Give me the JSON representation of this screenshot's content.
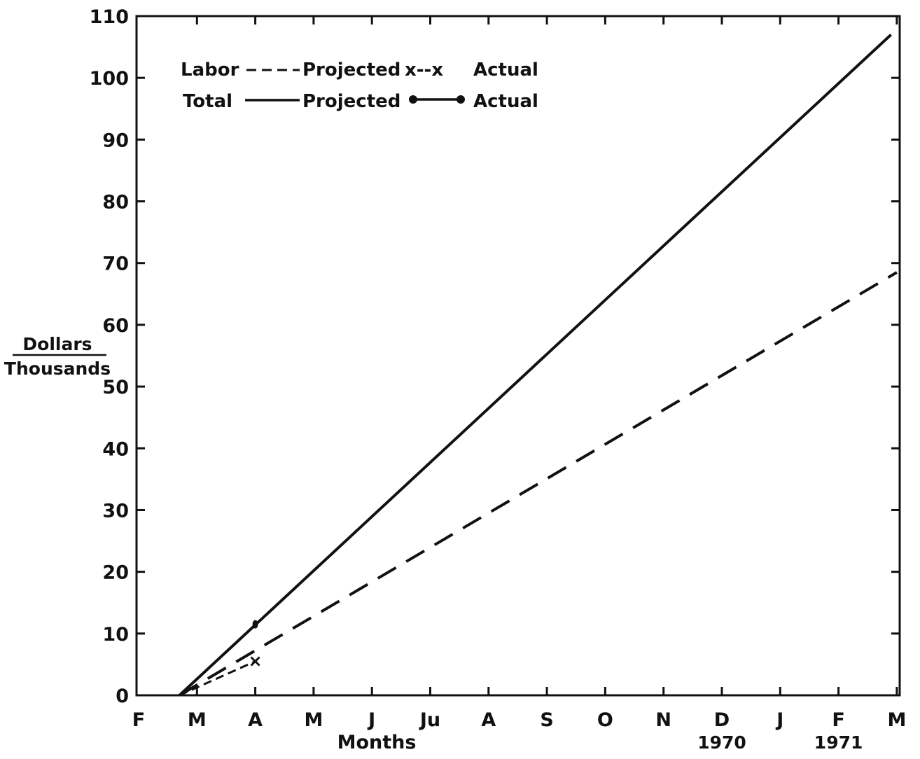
{
  "chart_data": {
    "type": "line",
    "xlabel": "Months",
    "ylabel_top": "Dollars",
    "ylabel_bottom": "Thousands",
    "ylim": [
      0,
      110
    ],
    "ytick_labels": [
      "0",
      "10",
      "20",
      "30",
      "40",
      "50",
      "60",
      "70",
      "80",
      "90",
      "100",
      "110"
    ],
    "month_labels": [
      "F",
      "M",
      "A",
      "M",
      "J",
      "Ju",
      "A",
      "S",
      "O",
      "N",
      "D",
      "J",
      "F",
      "M"
    ],
    "year_labels": [
      {
        "month_index": 10,
        "label": "1970"
      },
      {
        "month_index": 12,
        "label": "1971"
      }
    ],
    "legend": {
      "row1": {
        "category": "Labor",
        "projected": "Projected",
        "marker": "x--x",
        "actual": "Actual"
      },
      "row2": {
        "category": "Total",
        "projected": "Projected",
        "actual": "Actual"
      }
    },
    "series": [
      {
        "name": "Labor Projected",
        "style": "dashed",
        "points": [
          [
            0.7,
            0
          ],
          [
            13.0,
            68.5
          ]
        ]
      },
      {
        "name": "Total Projected",
        "style": "solid",
        "points": [
          [
            0.7,
            0
          ],
          [
            12.9,
            107
          ]
        ]
      },
      {
        "name": "Labor Actual",
        "style": "dashed-x",
        "points": [
          [
            0.7,
            0
          ],
          [
            2.0,
            5.5
          ]
        ]
      },
      {
        "name": "Total Actual",
        "style": "solid-dot",
        "points": [
          [
            2.0,
            11.5
          ]
        ]
      }
    ]
  }
}
